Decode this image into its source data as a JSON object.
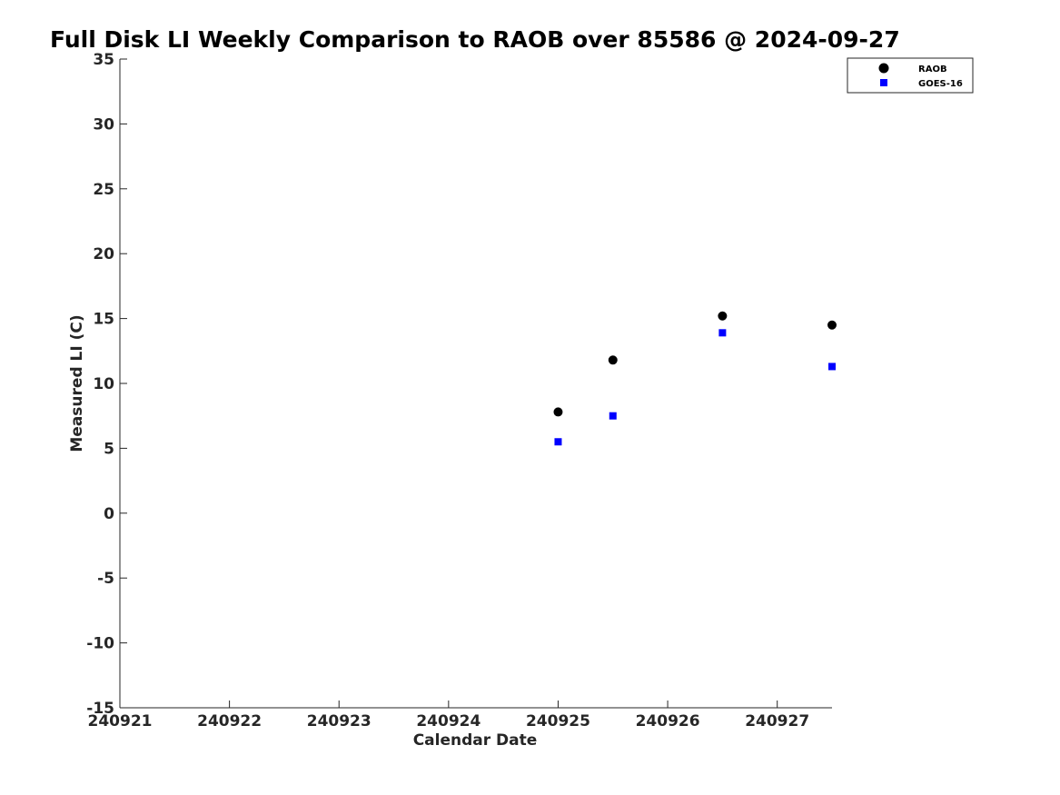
{
  "chart_data": {
    "type": "scatter",
    "title": "Full Disk LI Weekly Comparison to RAOB over 85586 @ 2024-09-27",
    "xlabel": "Calendar Date",
    "ylabel": "Measured LI (C)",
    "xlim": [
      240921,
      240927.5
    ],
    "ylim": [
      -15,
      35
    ],
    "x_ticks": [
      240921,
      240922,
      240923,
      240924,
      240925,
      240926,
      240927
    ],
    "x_tick_labels": [
      "240921",
      "240922",
      "240923",
      "240924",
      "240925",
      "240926",
      "240927"
    ],
    "y_ticks": [
      -15,
      -10,
      -5,
      0,
      5,
      10,
      15,
      20,
      25,
      30,
      35
    ],
    "y_tick_labels": [
      "-15",
      "-10",
      "-5",
      "0",
      "5",
      "10",
      "15",
      "20",
      "25",
      "30",
      "35"
    ],
    "grid": false,
    "legend_position": "top-right",
    "series": [
      {
        "name": "RAOB",
        "marker": "circle",
        "color": "#000000",
        "x": [
          240925,
          240925.5,
          240926.5,
          240927.5
        ],
        "y": [
          7.8,
          11.8,
          15.2,
          14.5
        ]
      },
      {
        "name": "GOES-16",
        "marker": "square",
        "color": "#0000ff",
        "x": [
          240925,
          240925.5,
          240926.5,
          240927.5
        ],
        "y": [
          5.5,
          7.5,
          13.9,
          11.3
        ]
      }
    ]
  }
}
